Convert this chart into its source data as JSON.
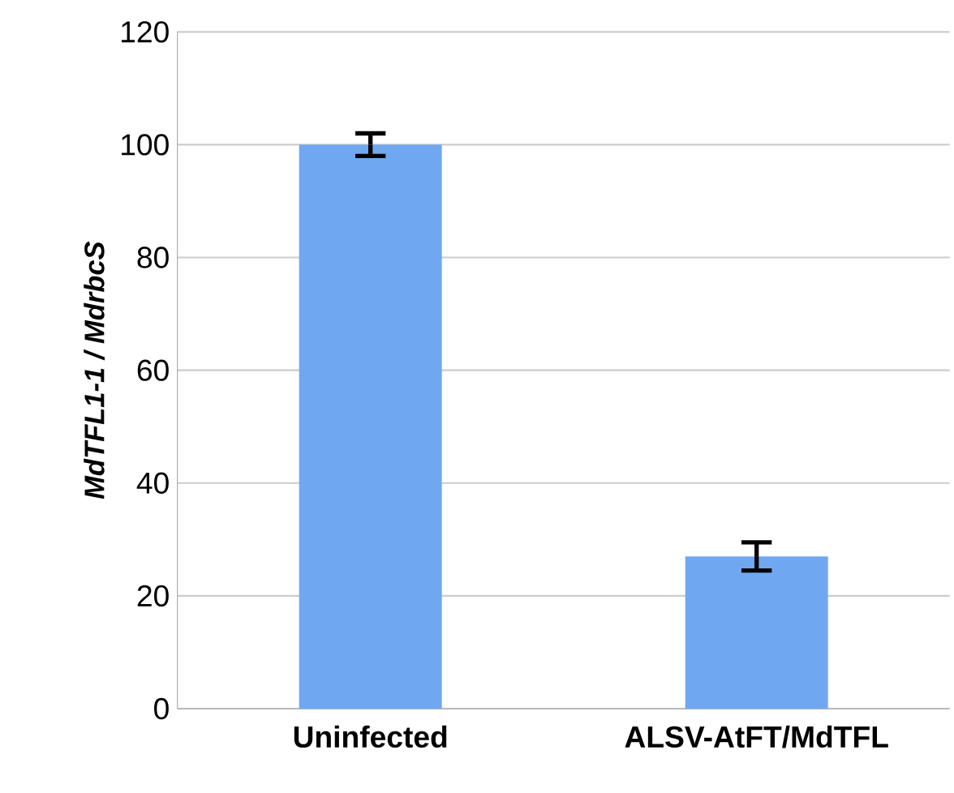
{
  "chart_data": {
    "type": "bar",
    "ylabel": "*MdTFL1-1 / MdrbcS*",
    "categories": [
      "Uninfected",
      "ALSV-AtFT/MdTFL"
    ],
    "values": [
      100,
      27
    ],
    "errors": [
      2,
      2.5
    ],
    "color": "#6fa8f0",
    "ylim": [
      0,
      120
    ],
    "yticks": [
      0,
      20,
      40,
      60,
      80,
      100,
      120
    ],
    "grid": "y"
  }
}
